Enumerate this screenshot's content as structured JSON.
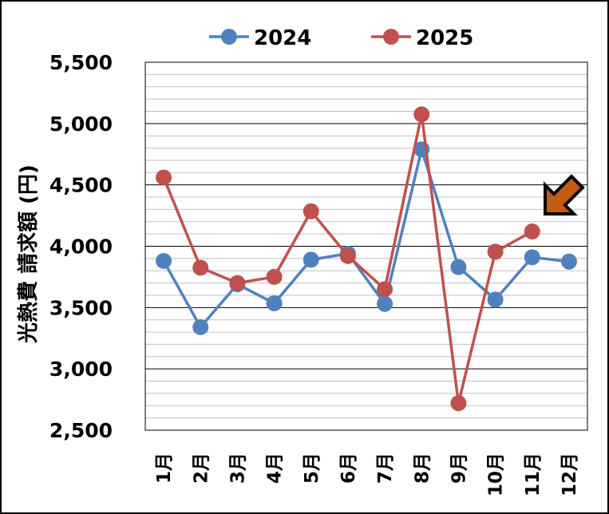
{
  "chart_data": {
    "type": "line",
    "categories": [
      "1月",
      "2月",
      "3月",
      "4月",
      "5月",
      "6月",
      "7月",
      "8月",
      "9月",
      "10月",
      "11月",
      "12月"
    ],
    "series": [
      {
        "name": "2024",
        "color": "#4F81BD",
        "values": [
          3880,
          3340,
          3690,
          3535,
          3890,
          3940,
          3530,
          4790,
          3830,
          3565,
          3910,
          3875
        ]
      },
      {
        "name": "2025",
        "color": "#C0504D",
        "values": [
          4560,
          3825,
          3700,
          3750,
          4285,
          3920,
          3650,
          5075,
          2720,
          3955,
          4120,
          null
        ]
      }
    ],
    "ylabel": "光熱費 請求額 (円)",
    "ylim": [
      2500,
      5500
    ],
    "yticks": [
      "2,500",
      "3,000",
      "3,500",
      "4,000",
      "4,500",
      "5,000",
      "5,500"
    ],
    "major_step": 500,
    "minor_step": 100,
    "grid": true,
    "legend_position": "top",
    "annotation": {
      "type": "arrow",
      "icon": "arrow-down-left-icon",
      "color": "#C55A11",
      "points_to": "11月"
    }
  }
}
